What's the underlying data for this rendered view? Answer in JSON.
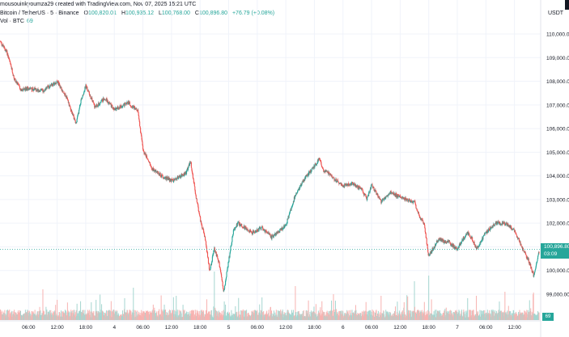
{
  "header": {
    "text": "mousouinkyoumza29 created with TradingView.com, Nov 07, 2025 15:21 UTC"
  },
  "legend": {
    "symbol": "Bitcoin / TetherUS · 5 · Binance",
    "o_label": "O",
    "o": "100,820.01",
    "h_label": "H",
    "h": "100,935.12",
    "l_label": "L",
    "l": "100,768.00",
    "c_label": "C",
    "c": "100,896.80",
    "chg": "+76.79 (+0.08%)"
  },
  "volume": {
    "label": "Vol · BTC",
    "value": "69"
  },
  "price_axis": {
    "currency": "USDT",
    "current_price": "100,896.80",
    "countdown": "03:09",
    "volume_badge": "69"
  },
  "colors": {
    "up": "#26a69a",
    "down": "#ef5350",
    "vol_up": "#a5d6d0",
    "vol_down": "#f7b3b1",
    "grid": "#f0f3fa",
    "text": "#131722"
  },
  "chart_data": {
    "type": "candlestick",
    "title": "",
    "y_ticks": [
      110000,
      109000,
      108000,
      107000,
      106000,
      105000,
      104000,
      103000,
      102000,
      101000,
      100000,
      99000
    ],
    "y_tick_labels": [
      "110,000.00",
      "109,000.00",
      "108,000.00",
      "107,000.00",
      "106,000.00",
      "105,000.00",
      "104,000.00",
      "103,000.00",
      "102,000.00",
      "101,000.00",
      "100,000.00",
      "99,000.00"
    ],
    "ylim": [
      98700,
      111000
    ],
    "x_ticks": [
      "06:00",
      "12:00",
      "18:00",
      "4",
      "06:00",
      "12:00",
      "18:00",
      "5",
      "06:00",
      "12:00",
      "18:00",
      "6",
      "06:00",
      "12:00",
      "18:00",
      "7",
      "06:00",
      "12:00"
    ],
    "x_tick_hours": [
      6,
      12,
      18,
      24,
      30,
      36,
      42,
      48,
      54,
      60,
      66,
      72,
      78,
      84,
      90,
      96,
      102,
      108
    ],
    "x_range_hours": [
      0,
      113.5
    ],
    "path_hours": [
      0,
      1.5,
      3,
      4.5,
      6,
      9,
      12,
      14,
      16,
      17,
      18,
      20,
      22,
      24,
      27,
      29,
      30,
      31,
      32,
      34,
      36,
      39,
      40,
      41,
      42,
      43,
      44,
      45,
      46,
      47,
      48,
      49,
      50,
      53,
      55,
      57,
      60,
      62,
      64,
      66,
      67,
      68,
      69,
      70,
      72,
      74,
      76,
      77,
      78,
      80,
      82,
      84,
      87,
      88,
      89,
      90,
      92,
      94,
      96,
      98,
      99,
      100,
      102,
      104,
      106,
      108,
      110,
      111,
      112,
      113.2
    ],
    "path_close": [
      109700,
      109200,
      108100,
      107600,
      107700,
      107600,
      108000,
      107300,
      106200,
      107200,
      107800,
      106900,
      107300,
      106800,
      107100,
      106700,
      105100,
      104700,
      104300,
      104000,
      103800,
      104100,
      104600,
      103300,
      102200,
      101400,
      100000,
      100900,
      100300,
      99100,
      100400,
      101700,
      102000,
      101600,
      101800,
      101400,
      101900,
      103200,
      103900,
      104400,
      104700,
      104200,
      104100,
      103900,
      103600,
      103700,
      103400,
      103000,
      103600,
      102900,
      103300,
      103100,
      102900,
      102300,
      102000,
      100600,
      101300,
      101200,
      100900,
      101600,
      101400,
      100900,
      101600,
      102000,
      102000,
      101700,
      100800,
      100400,
      99800,
      100800
    ],
    "volume_spikes_hours": [
      9,
      12,
      21,
      28,
      37,
      45,
      55,
      62,
      70,
      80,
      87,
      90,
      100,
      106,
      112
    ],
    "volume_spikes": [
      38,
      25,
      28,
      40,
      30,
      60,
      28,
      42,
      32,
      30,
      48,
      55,
      30,
      35,
      34
    ]
  }
}
